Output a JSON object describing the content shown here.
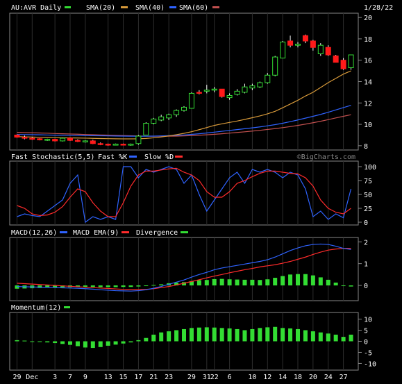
{
  "chart_data": [
    {
      "type": "candlestick",
      "title": "AU:AVR Daily",
      "date": "1/28/22",
      "watermark": "©BigCharts.com",
      "legend": [
        {
          "label": "",
          "color": "#33dd33"
        },
        {
          "label": "SMA(20)",
          "color": "#d89a3a"
        },
        {
          "label": "SMA(40)",
          "color": "#2f63ff"
        },
        {
          "label": "SMA(60)",
          "color": "#c2504f"
        }
      ],
      "ylim": [
        7.6,
        20.4
      ],
      "yticks": [
        8,
        10,
        12,
        14,
        16,
        18,
        20
      ],
      "x_labels": [
        "29",
        "Dec",
        "3",
        "7",
        "9",
        "13",
        "15",
        "17",
        "21",
        "23",
        "29",
        "31",
        "22",
        "6",
        "10",
        "12",
        "14",
        "18",
        "20",
        "24",
        "27"
      ],
      "candles": [
        [
          9.0,
          9.05,
          8.75,
          8.8
        ],
        [
          8.8,
          8.95,
          8.6,
          8.7
        ],
        [
          8.7,
          8.8,
          8.55,
          8.65
        ],
        [
          8.65,
          8.7,
          8.5,
          8.55
        ],
        [
          8.55,
          8.65,
          8.45,
          8.6
        ],
        [
          8.6,
          8.65,
          8.4,
          8.45
        ],
        [
          8.45,
          8.75,
          8.4,
          8.7
        ],
        [
          8.7,
          8.75,
          8.45,
          8.5
        ],
        [
          8.5,
          8.6,
          8.35,
          8.4
        ],
        [
          8.4,
          8.5,
          8.3,
          8.45
        ],
        [
          8.45,
          8.55,
          8.15,
          8.2
        ],
        [
          8.2,
          8.3,
          8.05,
          8.15
        ],
        [
          8.15,
          8.2,
          8.0,
          8.1
        ],
        [
          8.1,
          8.2,
          8.05,
          8.15
        ],
        [
          8.15,
          8.2,
          8.05,
          8.1
        ],
        [
          8.1,
          8.2,
          8.0,
          8.15
        ],
        [
          8.2,
          9.0,
          8.1,
          8.9
        ],
        [
          9.0,
          10.2,
          9.0,
          10.1
        ],
        [
          10.1,
          10.6,
          10.0,
          10.5
        ],
        [
          10.4,
          10.9,
          10.3,
          10.7
        ],
        [
          10.6,
          11.0,
          10.4,
          10.9
        ],
        [
          10.9,
          11.4,
          10.7,
          11.3
        ],
        [
          11.3,
          11.7,
          11.2,
          11.6
        ],
        [
          11.5,
          13.0,
          11.5,
          12.9
        ],
        [
          13.0,
          13.2,
          12.8,
          12.9
        ],
        [
          13.1,
          13.7,
          12.9,
          13.2
        ],
        [
          13.2,
          13.5,
          13.0,
          13.3
        ],
        [
          13.3,
          13.3,
          12.5,
          12.6
        ],
        [
          12.5,
          12.9,
          12.3,
          12.7
        ],
        [
          12.8,
          13.3,
          12.7,
          13.1
        ],
        [
          13.0,
          13.8,
          12.9,
          13.5
        ],
        [
          13.4,
          13.8,
          13.2,
          13.6
        ],
        [
          13.5,
          14.0,
          13.4,
          13.9
        ],
        [
          13.9,
          14.8,
          13.8,
          14.6
        ],
        [
          14.6,
          16.4,
          14.5,
          16.3
        ],
        [
          16.2,
          17.8,
          16.2,
          17.7
        ],
        [
          17.8,
          18.3,
          17.2,
          17.4
        ],
        [
          17.4,
          17.7,
          17.2,
          17.5
        ],
        [
          18.3,
          18.4,
          17.6,
          17.8
        ],
        [
          17.8,
          17.9,
          16.9,
          17.2
        ],
        [
          16.6,
          17.6,
          16.4,
          17.4
        ],
        [
          17.2,
          17.4,
          16.4,
          16.5
        ],
        [
          16.4,
          16.5,
          15.8,
          15.8
        ],
        [
          16.0,
          16.2,
          15.1,
          15.2
        ],
        [
          15.3,
          16.5,
          15.1,
          16.5
        ]
      ],
      "sma20": [
        8.85,
        8.83,
        8.81,
        8.79,
        8.77,
        8.75,
        8.74,
        8.73,
        8.72,
        8.71,
        8.69,
        8.67,
        8.66,
        8.65,
        8.64,
        8.64,
        8.65,
        8.68,
        8.74,
        8.82,
        8.92,
        9.03,
        9.16,
        9.31,
        9.5,
        9.7,
        9.9,
        10.05,
        10.18,
        10.31,
        10.46,
        10.62,
        10.79,
        10.98,
        11.22,
        11.55,
        11.9,
        12.25,
        12.65,
        13.0,
        13.45,
        13.9,
        14.3,
        14.7,
        15.0
      ],
      "sma40": [
        9.05,
        9.04,
        9.03,
        9.02,
        9.0,
        8.99,
        8.98,
        8.97,
        8.96,
        8.95,
        8.94,
        8.93,
        8.92,
        8.91,
        8.9,
        8.89,
        8.89,
        8.89,
        8.9,
        8.92,
        8.94,
        8.97,
        9.01,
        9.06,
        9.12,
        9.19,
        9.27,
        9.35,
        9.43,
        9.51,
        9.59,
        9.67,
        9.76,
        9.86,
        9.97,
        10.1,
        10.25,
        10.41,
        10.58,
        10.75,
        10.93,
        11.13,
        11.35,
        11.57,
        11.78
      ],
      "sma60": [
        9.25,
        9.23,
        9.21,
        9.19,
        9.17,
        9.14,
        9.12,
        9.1,
        9.08,
        9.05,
        9.03,
        9.01,
        8.99,
        8.97,
        8.95,
        8.93,
        8.91,
        8.9,
        8.89,
        8.89,
        8.89,
        8.9,
        8.92,
        8.95,
        8.98,
        9.02,
        9.07,
        9.12,
        9.18,
        9.24,
        9.3,
        9.37,
        9.44,
        9.52,
        9.6,
        9.69,
        9.79,
        9.9,
        10.02,
        10.15,
        10.29,
        10.44,
        10.6,
        10.75,
        10.9
      ]
    },
    {
      "type": "line",
      "title": "Fast Stochastic(5,5)",
      "legend": [
        {
          "label": "Fast %K",
          "color": "#2f63ff"
        },
        {
          "label": "Slow %D",
          "color": "#ff2b2b"
        }
      ],
      "ylim": [
        -5,
        110
      ],
      "yticks": [
        0,
        25,
        50,
        75,
        100
      ],
      "series": [
        {
          "name": "Fast %K",
          "values": [
            10,
            15,
            12,
            10,
            20,
            30,
            40,
            70,
            85,
            0,
            10,
            5,
            10,
            5,
            100,
            100,
            80,
            95,
            90,
            95,
            100,
            95,
            70,
            85,
            50,
            20,
            40,
            60,
            80,
            90,
            70,
            95,
            90,
            95,
            90,
            80,
            90,
            85,
            60,
            10,
            20,
            5,
            15,
            8,
            60
          ]
        },
        {
          "name": "Slow %D",
          "values": [
            30,
            25,
            15,
            12,
            13,
            18,
            28,
            45,
            60,
            55,
            35,
            20,
            10,
            10,
            35,
            65,
            85,
            92,
            92,
            94,
            96,
            97,
            90,
            85,
            75,
            55,
            45,
            45,
            55,
            70,
            75,
            82,
            88,
            92,
            92,
            90,
            88,
            87,
            80,
            65,
            40,
            25,
            18,
            15,
            25
          ]
        }
      ]
    },
    {
      "type": "line",
      "title": "MACD(12,26)",
      "legend": [
        {
          "label": "MACD EMA(9)",
          "color": "#2f63ff"
        },
        {
          "label": "Divergence",
          "color": "#ff2b2b"
        }
      ],
      "ylim": [
        -0.7,
        2.2
      ],
      "yticks": [
        0,
        1,
        2
      ],
      "macd": [
        -0.05,
        -0.06,
        -0.07,
        -0.08,
        -0.09,
        -0.1,
        -0.11,
        -0.12,
        -0.13,
        -0.15,
        -0.17,
        -0.2,
        -0.22,
        -0.24,
        -0.25,
        -0.26,
        -0.24,
        -0.2,
        -0.13,
        -0.05,
        0.05,
        0.15,
        0.25,
        0.38,
        0.5,
        0.6,
        0.72,
        0.8,
        0.86,
        0.92,
        0.98,
        1.04,
        1.1,
        1.18,
        1.3,
        1.45,
        1.6,
        1.72,
        1.82,
        1.88,
        1.9,
        1.88,
        1.8,
        1.7,
        1.65
      ],
      "ema": [
        0.1,
        0.08,
        0.06,
        0.04,
        0.02,
        0.0,
        -0.02,
        -0.04,
        -0.06,
        -0.08,
        -0.1,
        -0.12,
        -0.14,
        -0.16,
        -0.18,
        -0.19,
        -0.19,
        -0.18,
        -0.15,
        -0.1,
        -0.05,
        0.02,
        0.1,
        0.18,
        0.26,
        0.35,
        0.43,
        0.5,
        0.58,
        0.65,
        0.72,
        0.78,
        0.85,
        0.9,
        0.95,
        1.02,
        1.1,
        1.2,
        1.3,
        1.42,
        1.53,
        1.62,
        1.67,
        1.7,
        1.7
      ],
      "histogram": [
        -0.15,
        -0.14,
        -0.13,
        -0.12,
        -0.11,
        -0.1,
        -0.09,
        -0.08,
        -0.07,
        -0.07,
        -0.07,
        -0.08,
        -0.08,
        -0.08,
        -0.07,
        -0.07,
        -0.05,
        -0.02,
        0.02,
        0.05,
        0.1,
        0.13,
        0.15,
        0.2,
        0.24,
        0.25,
        0.29,
        0.3,
        0.28,
        0.27,
        0.26,
        0.26,
        0.25,
        0.28,
        0.35,
        0.43,
        0.5,
        0.52,
        0.52,
        0.46,
        0.37,
        0.26,
        0.13,
        0.0,
        -0.05
      ]
    },
    {
      "type": "bar",
      "title": "Momentum(12)",
      "legend": [
        {
          "label": "",
          "color": "#33dd33"
        }
      ],
      "ylim": [
        -13,
        13
      ],
      "yticks": [
        -10,
        -5,
        0,
        5,
        10
      ],
      "values": [
        0.5,
        0.3,
        0.0,
        -0.3,
        -0.5,
        -0.8,
        -1.2,
        -1.6,
        -2.2,
        -2.8,
        -3.0,
        -2.6,
        -2.0,
        -1.5,
        -1.0,
        -0.5,
        0.5,
        1.5,
        3.0,
        4.0,
        4.5,
        5.0,
        5.5,
        6.0,
        6.2,
        6.3,
        6.2,
        6.0,
        5.8,
        5.5,
        5.0,
        5.5,
        6.0,
        6.3,
        6.5,
        6.0,
        5.8,
        5.5,
        5.0,
        4.5,
        4.0,
        3.5,
        3.0,
        2.0,
        3.0
      ]
    }
  ]
}
